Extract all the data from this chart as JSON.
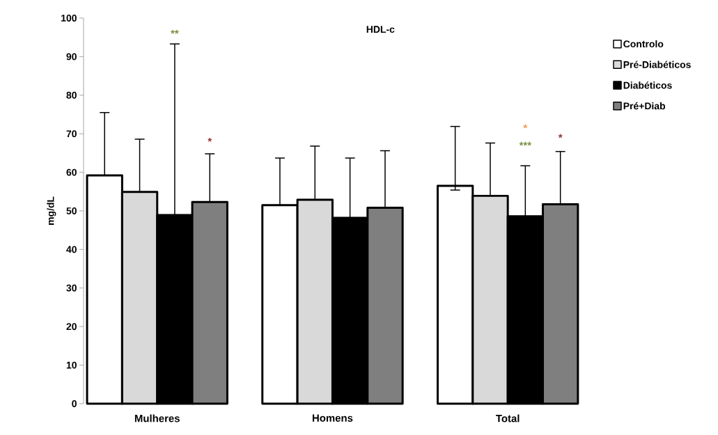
{
  "chart_data": {
    "type": "bar",
    "title": "HDL-c",
    "ylabel": "mg/dL",
    "categories": [
      "Mulheres",
      "Homens",
      "Total"
    ],
    "series": [
      {
        "name": "Controlo",
        "color": "#ffffff",
        "values": [
          59.2,
          51.5,
          56.5
        ],
        "errors": [
          [
            59.2,
            75.5
          ],
          [
            51.5,
            63.7
          ],
          [
            55.4,
            71.9
          ]
        ]
      },
      {
        "name": "Pré-Diabéticos",
        "color": "#d9d9d9",
        "values": [
          54.9,
          52.9,
          53.9
        ],
        "errors": [
          [
            54.9,
            68.6
          ],
          [
            52.9,
            66.8
          ],
          [
            53.9,
            67.6
          ]
        ]
      },
      {
        "name": "Diabéticos",
        "color": "#000000",
        "values": [
          48.9,
          48.2,
          48.6
        ],
        "errors": [
          [
            48.9,
            93.3
          ],
          [
            48.2,
            63.7
          ],
          [
            48.6,
            61.7
          ]
        ]
      },
      {
        "name": "Pré+Diab",
        "color": "#7f7f7f",
        "values": [
          52.3,
          50.8,
          51.7
        ],
        "errors": [
          [
            52.3,
            64.8
          ],
          [
            50.8,
            65.6
          ],
          [
            51.7,
            65.4
          ]
        ]
      }
    ],
    "annotations": [
      "**",
      "*",
      "*",
      "***",
      "*"
    ],
    "ylim": [
      0,
      100
    ],
    "yticks": [
      0,
      10,
      20,
      30,
      40,
      50,
      60,
      70,
      80,
      90,
      100
    ],
    "legend": "top right",
    "grid": false
  }
}
